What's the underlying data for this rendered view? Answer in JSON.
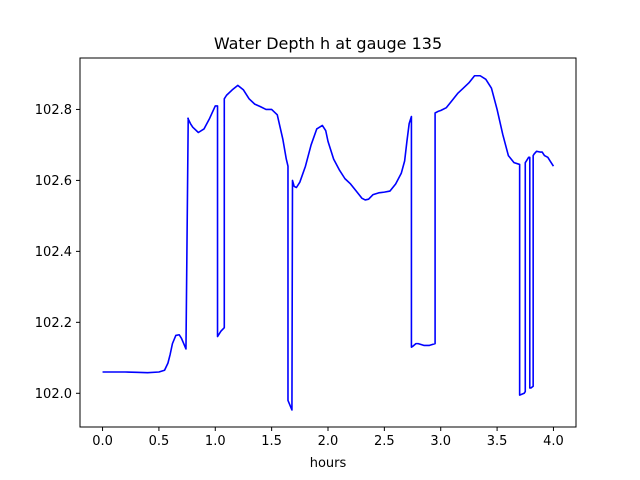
{
  "chart_data": {
    "type": "line",
    "title": "Water Depth h at gauge 135",
    "xlabel": "hours",
    "ylabel": "",
    "xlim": [
      -0.2,
      4.2
    ],
    "ylim": [
      101.905,
      102.945
    ],
    "x_ticks": [
      0.0,
      0.5,
      1.0,
      1.5,
      2.0,
      2.5,
      3.0,
      3.5,
      4.0
    ],
    "x_tick_labels": [
      "0.0",
      "0.5",
      "1.0",
      "1.5",
      "2.0",
      "2.5",
      "3.0",
      "3.5",
      "4.0"
    ],
    "y_ticks": [
      102.0,
      102.2,
      102.4,
      102.6,
      102.8
    ],
    "y_tick_labels": [
      "102.0",
      "102.2",
      "102.4",
      "102.6",
      "102.8"
    ],
    "grid": false,
    "legend": "none",
    "series": [
      {
        "color": "#0000ff",
        "x": [
          0.0,
          0.2,
          0.3,
          0.4,
          0.5,
          0.55,
          0.58,
          0.6,
          0.62,
          0.65,
          0.68,
          0.7,
          0.72,
          0.74,
          0.76,
          0.757,
          0.78,
          0.8,
          0.85,
          0.9,
          0.95,
          1.0,
          1.02,
          1.02,
          1.05,
          1.08,
          1.08,
          1.1,
          1.15,
          1.2,
          1.25,
          1.3,
          1.35,
          1.4,
          1.45,
          1.5,
          1.55,
          1.6,
          1.63,
          1.645,
          1.645,
          1.68,
          1.685,
          1.7,
          1.72,
          1.75,
          1.8,
          1.85,
          1.9,
          1.95,
          1.98,
          2.0,
          2.05,
          2.1,
          2.15,
          2.2,
          2.25,
          2.3,
          2.33,
          2.36,
          2.4,
          2.45,
          2.5,
          2.55,
          2.6,
          2.65,
          2.68,
          2.7,
          2.72,
          2.74,
          2.74,
          2.75,
          2.78,
          2.8,
          2.85,
          2.9,
          2.95,
          2.95,
          2.98,
          3.0,
          3.05,
          3.1,
          3.15,
          3.2,
          3.25,
          3.3,
          3.35,
          3.4,
          3.45,
          3.5,
          3.55,
          3.6,
          3.65,
          3.7,
          3.7,
          3.74,
          3.75,
          3.75,
          3.76,
          3.78,
          3.79,
          3.79,
          3.8,
          3.82,
          3.82,
          3.83,
          3.85,
          3.88,
          3.9,
          3.92,
          3.95,
          3.97,
          4.0
        ],
        "y": [
          102.06,
          102.06,
          102.059,
          102.058,
          102.06,
          102.065,
          102.085,
          102.11,
          102.14,
          102.163,
          102.165,
          102.155,
          102.14,
          102.125,
          102.775,
          102.775,
          102.76,
          102.75,
          102.735,
          102.745,
          102.775,
          102.81,
          102.81,
          102.16,
          102.175,
          102.185,
          102.83,
          102.84,
          102.855,
          102.868,
          102.855,
          102.83,
          102.815,
          102.808,
          102.8,
          102.8,
          102.785,
          102.715,
          102.66,
          102.64,
          101.98,
          101.953,
          102.6,
          102.583,
          102.58,
          102.595,
          102.64,
          102.7,
          102.745,
          102.755,
          102.74,
          102.71,
          102.66,
          102.63,
          102.605,
          102.59,
          102.57,
          102.55,
          102.545,
          102.547,
          102.56,
          102.565,
          102.567,
          102.57,
          102.59,
          102.62,
          102.655,
          102.71,
          102.76,
          102.78,
          102.13,
          102.132,
          102.14,
          102.14,
          102.135,
          102.135,
          102.14,
          102.79,
          102.795,
          102.797,
          102.805,
          102.825,
          102.845,
          102.86,
          102.875,
          102.895,
          102.895,
          102.885,
          102.86,
          102.8,
          102.73,
          102.67,
          102.65,
          102.645,
          101.995,
          102.0,
          102.005,
          102.65,
          102.655,
          102.665,
          102.665,
          102.015,
          102.015,
          102.02,
          102.67,
          102.675,
          102.682,
          102.68,
          102.68,
          102.67,
          102.665,
          102.655,
          102.64
        ]
      }
    ]
  }
}
